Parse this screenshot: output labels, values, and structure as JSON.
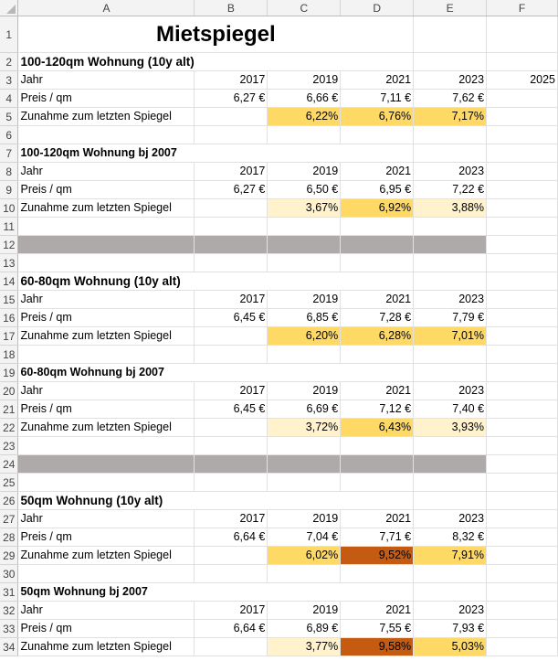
{
  "colors": {
    "highlight_mid": "#ffd966",
    "highlight_light": "#fff2cc",
    "highlight_dark": "#c55a11",
    "separator": "#aeaaaa"
  },
  "columns": [
    "A",
    "B",
    "C",
    "D",
    "E",
    "F"
  ],
  "title": "Mietspiegel",
  "rows": [
    {
      "n": "1",
      "type": "title"
    },
    {
      "n": "2",
      "type": "section",
      "label": "100-120qm Wohnung (10y alt)"
    },
    {
      "n": "3",
      "type": "data",
      "cells": [
        "Jahr",
        "2017",
        "2019",
        "2021",
        "2023",
        "2025"
      ]
    },
    {
      "n": "4",
      "type": "data",
      "cells": [
        "Preis / qm",
        "6,27 €",
        "6,66 €",
        "7,11 €",
        "7,62 €",
        ""
      ]
    },
    {
      "n": "5",
      "type": "data",
      "cells": [
        "Zunahme zum letzten Spiegel",
        "",
        "6,22%",
        "6,76%",
        "7,17%",
        ""
      ],
      "fills": [
        "",
        "",
        "mid",
        "mid",
        "mid",
        ""
      ]
    },
    {
      "n": "6",
      "type": "empty"
    },
    {
      "n": "7",
      "type": "section",
      "label": "100-120qm Wohnung bj 2007",
      "small": true
    },
    {
      "n": "8",
      "type": "data",
      "cells": [
        "Jahr",
        "2017",
        "2019",
        "2021",
        "2023",
        ""
      ]
    },
    {
      "n": "9",
      "type": "data",
      "cells": [
        "Preis / qm",
        "6,27 €",
        "6,50 €",
        "6,95 €",
        "7,22 €",
        ""
      ]
    },
    {
      "n": "10",
      "type": "data",
      "cells": [
        "Zunahme zum letzten Spiegel",
        "",
        "3,67%",
        "6,92%",
        "3,88%",
        ""
      ],
      "fills": [
        "",
        "",
        "light",
        "mid",
        "light",
        ""
      ]
    },
    {
      "n": "11",
      "type": "empty"
    },
    {
      "n": "12",
      "type": "separator"
    },
    {
      "n": "13",
      "type": "empty"
    },
    {
      "n": "14",
      "type": "section",
      "label": "60-80qm Wohnung (10y alt)"
    },
    {
      "n": "15",
      "type": "data",
      "cells": [
        "Jahr",
        "2017",
        "2019",
        "2021",
        "2023",
        ""
      ]
    },
    {
      "n": "16",
      "type": "data",
      "cells": [
        "Preis / qm",
        "6,45 €",
        "6,85 €",
        "7,28 €",
        "7,79 €",
        ""
      ]
    },
    {
      "n": "17",
      "type": "data",
      "cells": [
        "Zunahme zum letzten Spiegel",
        "",
        "6,20%",
        "6,28%",
        "7,01%",
        ""
      ],
      "fills": [
        "",
        "",
        "mid",
        "mid",
        "mid",
        ""
      ]
    },
    {
      "n": "18",
      "type": "empty"
    },
    {
      "n": "19",
      "type": "section",
      "label": "60-80qm Wohnung bj 2007",
      "small": true
    },
    {
      "n": "20",
      "type": "data",
      "cells": [
        "Jahr",
        "2017",
        "2019",
        "2021",
        "2023",
        ""
      ]
    },
    {
      "n": "21",
      "type": "data",
      "cells": [
        "Preis / qm",
        "6,45 €",
        "6,69 €",
        "7,12 €",
        "7,40 €",
        ""
      ]
    },
    {
      "n": "22",
      "type": "data",
      "cells": [
        "Zunahme zum letzten Spiegel",
        "",
        "3,72%",
        "6,43%",
        "3,93%",
        ""
      ],
      "fills": [
        "",
        "",
        "light",
        "mid",
        "light",
        ""
      ]
    },
    {
      "n": "23",
      "type": "empty"
    },
    {
      "n": "24",
      "type": "separator"
    },
    {
      "n": "25",
      "type": "empty"
    },
    {
      "n": "26",
      "type": "section",
      "label": "50qm Wohnung (10y alt)"
    },
    {
      "n": "27",
      "type": "data",
      "cells": [
        "Jahr",
        "2017",
        "2019",
        "2021",
        "2023",
        ""
      ]
    },
    {
      "n": "28",
      "type": "data",
      "cells": [
        "Preis / qm",
        "6,64 €",
        "7,04 €",
        "7,71 €",
        "8,32 €",
        ""
      ]
    },
    {
      "n": "29",
      "type": "data",
      "cells": [
        "Zunahme zum letzten Spiegel",
        "",
        "6,02%",
        "9,52%",
        "7,91%",
        ""
      ],
      "fills": [
        "",
        "",
        "mid",
        "dark",
        "mid",
        ""
      ]
    },
    {
      "n": "30",
      "type": "empty"
    },
    {
      "n": "31",
      "type": "section",
      "label": "50qm Wohnung bj 2007",
      "small": true
    },
    {
      "n": "32",
      "type": "data",
      "cells": [
        "Jahr",
        "2017",
        "2019",
        "2021",
        "2023",
        ""
      ]
    },
    {
      "n": "33",
      "type": "data",
      "cells": [
        "Preis / qm",
        "6,64 €",
        "6,89 €",
        "7,55 €",
        "7,93 €",
        ""
      ]
    },
    {
      "n": "34",
      "type": "data",
      "cells": [
        "Zunahme zum letzten Spiegel",
        "",
        "3,77%",
        "9,58%",
        "5,03%",
        ""
      ],
      "fills": [
        "",
        "",
        "light",
        "dark",
        "mid",
        ""
      ]
    }
  ]
}
